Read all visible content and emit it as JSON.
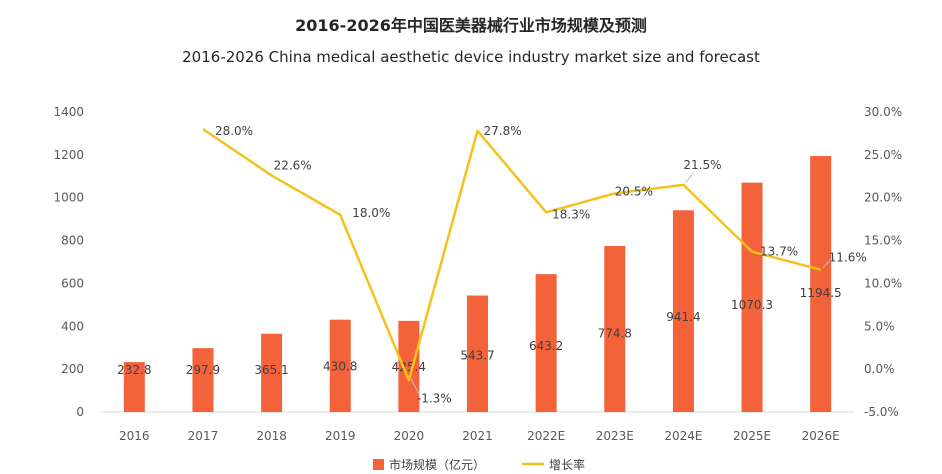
{
  "chart_data": {
    "type": "bar+line",
    "title": "2016-2026年中国医美器械行业市场规模及预测",
    "subtitle": "2016-2026 China medical aesthetic device industry market size and forecast",
    "categories": [
      "2016",
      "2017",
      "2018",
      "2019",
      "2020",
      "2021",
      "2022E",
      "2023E",
      "2024E",
      "2025E",
      "2026E"
    ],
    "series": [
      {
        "name": "市场规模（亿元）",
        "type": "bar",
        "axis": "left",
        "color": "#f4623a",
        "values": [
          232.8,
          297.9,
          365.1,
          430.8,
          425.4,
          543.7,
          643.2,
          774.8,
          941.4,
          1070.3,
          1194.5
        ],
        "labels": [
          "232.8",
          "297.9",
          "365.1",
          "430.8",
          "425.4",
          "543.7",
          "643.2",
          "774.8",
          "941.4",
          "1070.3",
          "1194.5"
        ]
      },
      {
        "name": "增长率",
        "type": "line",
        "axis": "right",
        "color": "#f5c21b",
        "values": [
          null,
          28.0,
          22.6,
          18.0,
          -1.3,
          27.8,
          18.3,
          20.5,
          21.5,
          13.7,
          11.6
        ],
        "labels": [
          "",
          "28.0%",
          "22.6%",
          "18.0%",
          "-1.3%",
          "27.8%",
          "18.3%",
          "20.5%",
          "21.5%",
          "13.7%",
          "11.6%"
        ]
      }
    ],
    "y_left": {
      "min": 0,
      "max": 1400,
      "ticks": [
        "0",
        "200",
        "400",
        "600",
        "800",
        "1000",
        "1200",
        "1400"
      ]
    },
    "y_right": {
      "min": -5,
      "max": 30,
      "ticks": [
        "-5.0%",
        "0.0%",
        "5.0%",
        "10.0%",
        "15.0%",
        "20.0%",
        "25.0%",
        "30.0%"
      ]
    },
    "grid": false,
    "legend_position": "bottom"
  }
}
